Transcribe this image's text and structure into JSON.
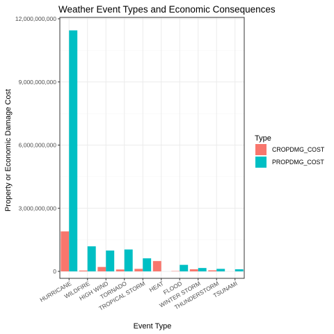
{
  "colors": {
    "CROPDMG_COST": "#F8766D",
    "PROPDMG_COST": "#00BFC4",
    "panel_border": "#333333",
    "grid_major": "#ebebeb",
    "grid_minor": "#f5f5f5"
  },
  "chart_data": {
    "type": "bar",
    "title": "Weather Event Types and Economic Consequences",
    "xlabel": "Event Type",
    "ylabel": "Property or Economic Damage Cost",
    "ylim": [
      -600000000,
      12000000000
    ],
    "yticks": [
      0,
      3000000000,
      6000000000,
      9000000000,
      12000000000
    ],
    "ytick_labels": [
      "0",
      "3,000,000,000",
      "6,000,000,000",
      "9,000,000,000",
      "12,000,000,000"
    ],
    "categories": [
      "HURRICANE",
      "WILDFIRE",
      "HIGH WIND",
      "TORNADO",
      "TROPICAL STORM",
      "HEAT",
      "FLOOD",
      "WINTER STORM",
      "THUNDERSTORM",
      "TSUNAMI"
    ],
    "series": [
      {
        "name": "CROPDMG_COST",
        "values": [
          1900000000,
          40000000,
          210000000,
          90000000,
          120000000,
          490000000,
          15000000,
          100000000,
          50000000,
          0
        ]
      },
      {
        "name": "PROPDMG_COST",
        "values": [
          11450000000,
          1190000000,
          990000000,
          1040000000,
          620000000,
          0,
          310000000,
          160000000,
          120000000,
          100000000
        ]
      }
    ],
    "legend": {
      "title": "Type",
      "position": "right"
    },
    "grid": true
  }
}
